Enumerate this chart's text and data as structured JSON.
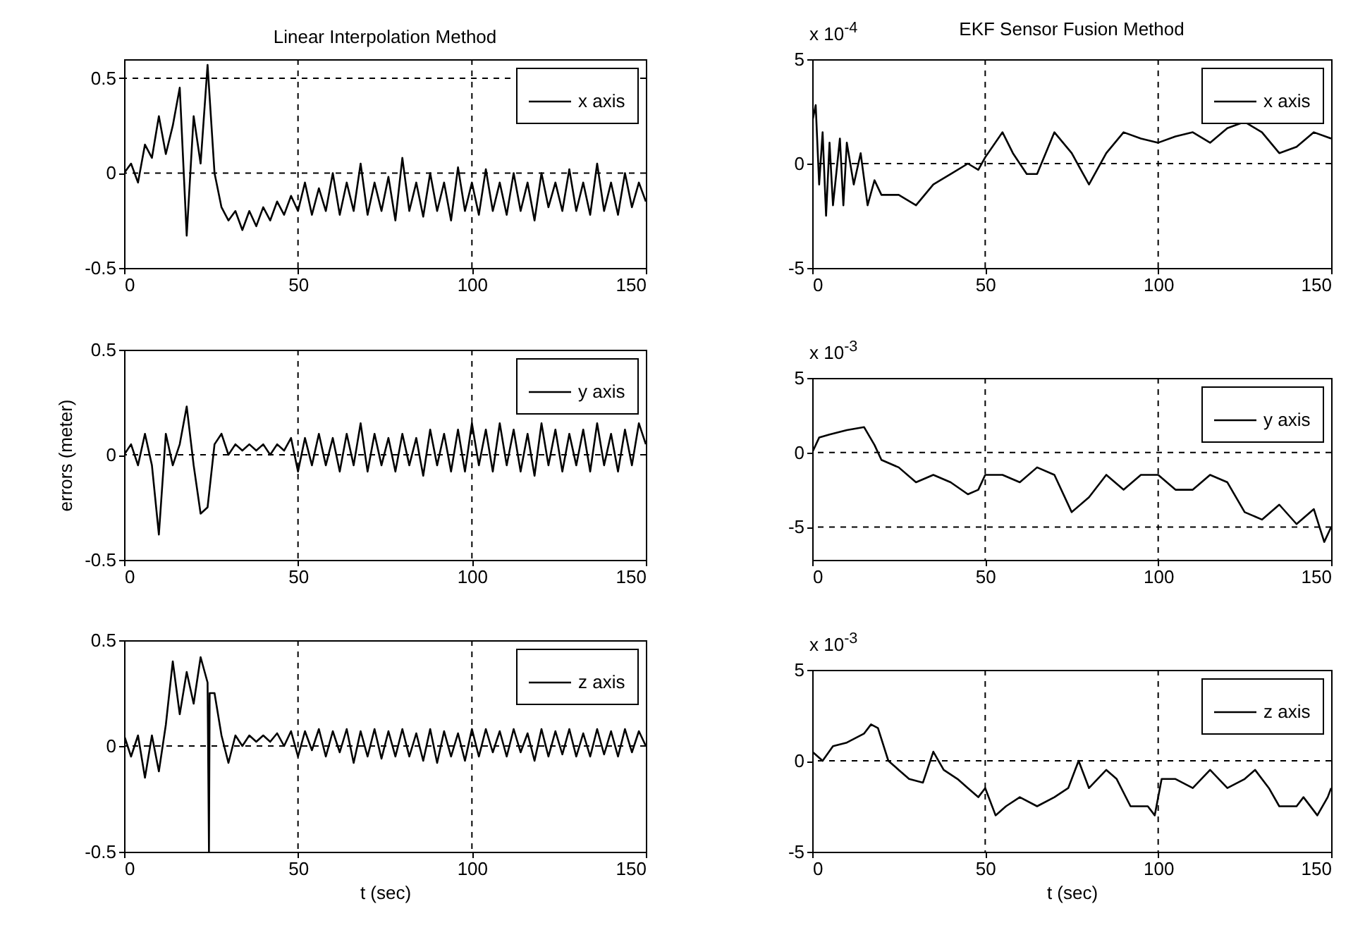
{
  "chart_data": [
    {
      "type": "line",
      "title": "Linear Interpolation Method",
      "legend": "top right",
      "grid": true,
      "x": [
        0,
        2,
        4,
        6,
        8,
        10,
        12,
        14,
        16,
        18,
        20,
        22,
        24,
        26,
        28,
        30,
        32,
        34,
        36,
        38,
        40,
        42,
        44,
        46,
        48,
        50,
        52,
        54,
        56,
        58,
        60,
        62,
        64,
        66,
        68,
        70,
        72,
        74,
        76,
        78,
        80,
        82,
        84,
        86,
        88,
        90,
        92,
        94,
        96,
        98,
        100,
        102,
        104,
        106,
        108,
        110,
        112,
        114,
        116,
        118,
        120,
        122,
        124,
        126,
        128,
        130,
        132,
        134,
        136,
        138,
        140,
        142,
        144,
        146,
        148,
        150
      ],
      "series": [
        {
          "name": "x axis",
          "color": "#000000",
          "values": [
            0,
            0.05,
            -0.05,
            0.15,
            0.08,
            0.3,
            0.1,
            0.25,
            0.45,
            -0.33,
            0.3,
            0.05,
            0.57,
            0.0,
            -0.18,
            -0.25,
            -0.2,
            -0.3,
            -0.2,
            -0.28,
            -0.18,
            -0.25,
            -0.15,
            -0.22,
            -0.12,
            -0.2,
            -0.05,
            -0.22,
            -0.08,
            -0.2,
            0.0,
            -0.22,
            -0.05,
            -0.2,
            0.05,
            -0.22,
            -0.05,
            -0.2,
            -0.02,
            -0.25,
            0.08,
            -0.2,
            -0.05,
            -0.23,
            0.0,
            -0.2,
            -0.05,
            -0.25,
            0.03,
            -0.2,
            -0.05,
            -0.22,
            0.02,
            -0.2,
            -0.05,
            -0.22,
            0.0,
            -0.2,
            -0.05,
            -0.25,
            0.0,
            -0.18,
            -0.05,
            -0.2,
            0.02,
            -0.2,
            -0.05,
            -0.22,
            0.05,
            -0.2,
            -0.05,
            -0.22,
            0.0,
            -0.18,
            -0.05,
            -0.15
          ]
        }
      ],
      "xlim": [
        0,
        150
      ],
      "xticks": [
        0,
        50,
        100,
        150
      ],
      "ylim": [
        -0.5,
        0.6
      ],
      "yticks": [
        -0.5,
        0,
        0.5
      ]
    },
    {
      "type": "line",
      "title": "EKF Sensor Fusion Method",
      "legend": "top right",
      "grid": true,
      "annotations": [
        "x 10$^{-4}$"
      ],
      "x": [
        0,
        1,
        2,
        3,
        4,
        5,
        6,
        8,
        9,
        10,
        12,
        14,
        16,
        18,
        20,
        25,
        30,
        35,
        40,
        45,
        48,
        50,
        55,
        58,
        62,
        65,
        70,
        75,
        80,
        85,
        90,
        95,
        100,
        105,
        110,
        115,
        120,
        125,
        130,
        135,
        140,
        145,
        150
      ],
      "series": [
        {
          "name": "x axis",
          "color": "#000000",
          "values": [
            2,
            2.8,
            -1,
            1.5,
            -2.5,
            1,
            -2,
            1.2,
            -2,
            1,
            -1,
            0.5,
            -2,
            -0.8,
            -1.5,
            -1.5,
            -2,
            -1,
            -0.5,
            0,
            -0.3,
            0.3,
            1.5,
            0.5,
            -0.5,
            -0.5,
            1.5,
            0.5,
            -1,
            0.5,
            1.5,
            1.2,
            1.0,
            1.3,
            1.5,
            1.0,
            1.7,
            2.0,
            1.5,
            0.5,
            0.8,
            1.5,
            1.2
          ]
        }
      ],
      "xlim": [
        0,
        150
      ],
      "xticks": [
        0,
        50,
        100,
        150
      ],
      "ylim": [
        -5,
        5
      ],
      "yticks": [
        -5,
        0,
        5
      ]
    },
    {
      "type": "line",
      "ylabel": "errors (meter)",
      "legend": "top right",
      "grid": true,
      "x": [
        0,
        2,
        4,
        6,
        8,
        10,
        12,
        14,
        16,
        18,
        20,
        22,
        24,
        26,
        28,
        30,
        32,
        34,
        36,
        38,
        40,
        42,
        44,
        46,
        48,
        50,
        52,
        54,
        56,
        58,
        60,
        62,
        64,
        66,
        68,
        70,
        72,
        74,
        76,
        78,
        80,
        82,
        84,
        86,
        88,
        90,
        92,
        94,
        96,
        98,
        100,
        102,
        104,
        106,
        108,
        110,
        112,
        114,
        116,
        118,
        120,
        122,
        124,
        126,
        128,
        130,
        132,
        134,
        136,
        138,
        140,
        142,
        144,
        146,
        148,
        150
      ],
      "series": [
        {
          "name": "y axis",
          "color": "#000000",
          "values": [
            0,
            0.05,
            -0.05,
            0.1,
            -0.05,
            -0.38,
            0.1,
            -0.05,
            0.05,
            0.23,
            -0.05,
            -0.28,
            -0.25,
            0.05,
            0.1,
            0,
            0.05,
            0.02,
            0.05,
            0.02,
            0.05,
            0.0,
            0.05,
            0.02,
            0.08,
            -0.08,
            0.08,
            -0.05,
            0.1,
            -0.05,
            0.08,
            -0.08,
            0.1,
            -0.05,
            0.15,
            -0.08,
            0.1,
            -0.05,
            0.08,
            -0.08,
            0.1,
            -0.05,
            0.08,
            -0.1,
            0.12,
            -0.05,
            0.1,
            -0.08,
            0.12,
            -0.08,
            0.15,
            -0.05,
            0.12,
            -0.08,
            0.15,
            -0.05,
            0.12,
            -0.08,
            0.1,
            -0.1,
            0.15,
            -0.05,
            0.12,
            -0.08,
            0.1,
            -0.05,
            0.12,
            -0.08,
            0.15,
            -0.05,
            0.1,
            -0.08,
            0.12,
            -0.05,
            0.15,
            0.05
          ]
        }
      ],
      "xlim": [
        0,
        150
      ],
      "xticks": [
        0,
        50,
        100,
        150
      ],
      "ylim": [
        -0.5,
        0.5
      ],
      "yticks": [
        -0.5,
        0,
        0.5
      ]
    },
    {
      "type": "line",
      "legend": "top right",
      "grid": true,
      "annotations": [
        "x 10$^{-3}$"
      ],
      "x": [
        0,
        2,
        5,
        10,
        15,
        18,
        20,
        25,
        30,
        35,
        40,
        45,
        48,
        50,
        55,
        60,
        65,
        70,
        75,
        80,
        85,
        90,
        95,
        100,
        105,
        110,
        115,
        120,
        125,
        130,
        135,
        140,
        145,
        148,
        150
      ],
      "series": [
        {
          "name": "y axis",
          "color": "#000000",
          "values": [
            0,
            1,
            1.2,
            1.5,
            1.7,
            0.5,
            -0.5,
            -1,
            -2,
            -1.5,
            -2,
            -2.8,
            -2.5,
            -1.5,
            -1.5,
            -2,
            -1,
            -1.5,
            -4,
            -3,
            -1.5,
            -2.5,
            -1.5,
            -1.5,
            -2.5,
            -2.5,
            -1.5,
            -2,
            -4,
            -4.5,
            -3.5,
            -4.8,
            -3.8,
            -6,
            -5
          ]
        }
      ],
      "xlim": [
        0,
        150
      ],
      "xticks": [
        0,
        50,
        100,
        150
      ],
      "ylim": [
        -7.2,
        5
      ],
      "yticks": [
        -5,
        0,
        5
      ]
    },
    {
      "type": "line",
      "xlabel": "t (sec)",
      "legend": "top right",
      "grid": true,
      "x": [
        0,
        2,
        4,
        6,
        8,
        10,
        12,
        14,
        16,
        18,
        20,
        22,
        24,
        24.4,
        24.6,
        26,
        28,
        30,
        32,
        34,
        36,
        38,
        40,
        42,
        44,
        46,
        48,
        50,
        52,
        54,
        56,
        58,
        60,
        62,
        64,
        66,
        68,
        70,
        72,
        74,
        76,
        78,
        80,
        82,
        84,
        86,
        88,
        90,
        92,
        94,
        96,
        98,
        100,
        102,
        104,
        106,
        108,
        110,
        112,
        114,
        116,
        118,
        120,
        122,
        124,
        126,
        128,
        130,
        132,
        134,
        136,
        138,
        140,
        142,
        144,
        146,
        148,
        150
      ],
      "series": [
        {
          "name": "z axis",
          "color": "#000000",
          "values": [
            0.05,
            -0.05,
            0.05,
            -0.15,
            0.05,
            -0.12,
            0.1,
            0.4,
            0.15,
            0.35,
            0.2,
            0.42,
            0.3,
            -0.5,
            0.25,
            0.25,
            0.05,
            -0.08,
            0.05,
            0.0,
            0.05,
            0.02,
            0.05,
            0.02,
            0.06,
            0.0,
            0.07,
            -0.05,
            0.07,
            -0.02,
            0.08,
            -0.05,
            0.07,
            -0.03,
            0.08,
            -0.08,
            0.07,
            -0.05,
            0.08,
            -0.06,
            0.07,
            -0.05,
            0.08,
            -0.05,
            0.06,
            -0.07,
            0.08,
            -0.08,
            0.07,
            -0.05,
            0.06,
            -0.07,
            0.08,
            -0.05,
            0.08,
            -0.03,
            0.07,
            -0.05,
            0.08,
            -0.03,
            0.06,
            -0.07,
            0.08,
            -0.05,
            0.07,
            -0.04,
            0.08,
            -0.05,
            0.06,
            -0.05,
            0.08,
            -0.04,
            0.07,
            -0.05,
            0.08,
            -0.03,
            0.07,
            0.0
          ]
        }
      ],
      "xlim": [
        0,
        150
      ],
      "xticks": [
        0,
        50,
        100,
        150
      ],
      "ylim": [
        -0.5,
        0.5
      ],
      "yticks": [
        -0.5,
        0,
        0.5
      ]
    },
    {
      "type": "line",
      "xlabel": "t (sec)",
      "legend": "top right",
      "grid": true,
      "annotations": [
        "x 10$^{-3}$"
      ],
      "x": [
        0,
        3,
        6,
        10,
        15,
        17,
        19,
        22,
        25,
        28,
        32,
        35,
        38,
        42,
        45,
        48,
        50,
        53,
        56,
        60,
        65,
        70,
        74,
        77,
        80,
        85,
        88,
        92,
        97,
        99,
        101,
        105,
        110,
        115,
        120,
        125,
        128,
        132,
        135,
        140,
        142,
        146,
        149,
        150
      ],
      "series": [
        {
          "name": "z axis",
          "color": "#000000",
          "values": [
            0.5,
            0,
            0.8,
            1,
            1.5,
            2,
            1.8,
            0,
            -0.5,
            -1,
            -1.2,
            0.5,
            -0.5,
            -1,
            -1.5,
            -2,
            -1.5,
            -3,
            -2.5,
            -2,
            -2.5,
            -2,
            -1.5,
            0,
            -1.5,
            -0.5,
            -1,
            -2.5,
            -2.5,
            -3,
            -1,
            -1,
            -1.5,
            -0.5,
            -1.5,
            -1,
            -0.5,
            -1.5,
            -2.5,
            -2.5,
            -2,
            -3,
            -2,
            -1.5
          ]
        }
      ],
      "xlim": [
        0,
        150
      ],
      "xticks": [
        0,
        50,
        100,
        150
      ],
      "ylim": [
        -5,
        5
      ],
      "yticks": [
        -5,
        0,
        5
      ]
    }
  ]
}
